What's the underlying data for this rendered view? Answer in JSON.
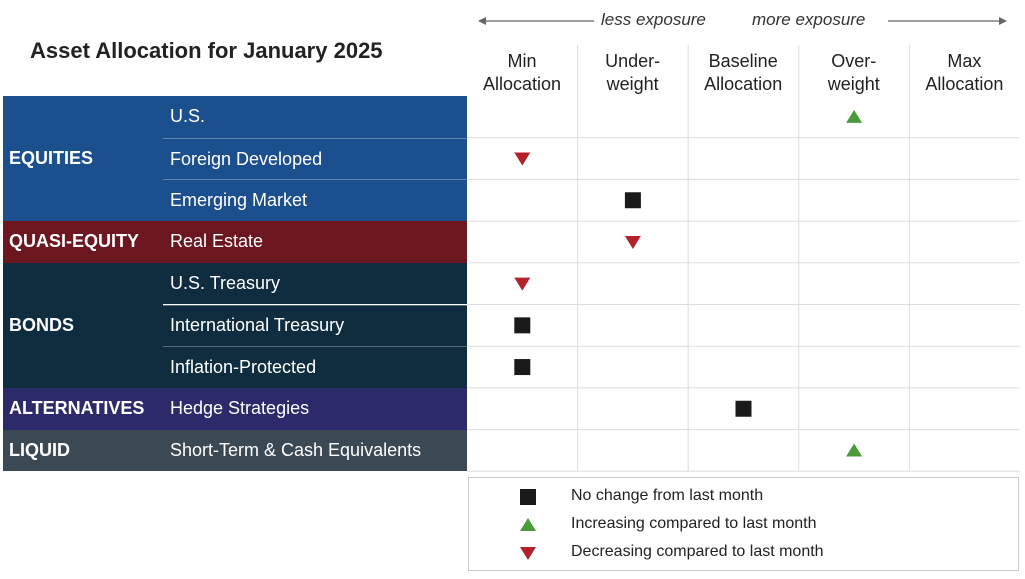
{
  "title": "Asset Allocation for January 2025",
  "exposure": {
    "less": "less exposure",
    "more": "more exposure"
  },
  "columns": [
    [
      "Min",
      "Allocation"
    ],
    [
      "Under-",
      "weight"
    ],
    [
      "Baseline",
      "Allocation"
    ],
    [
      "Over-",
      "weight"
    ],
    [
      "Max",
      "Allocation"
    ]
  ],
  "groups": [
    {
      "name": "EQUITIES",
      "color": "#1b4f8d",
      "rows": [
        {
          "label": "U.S.",
          "position": 3,
          "signal": "increase"
        },
        {
          "label": "Foreign Developed",
          "position": 0,
          "signal": "decrease"
        },
        {
          "label": "Emerging Market",
          "position": 1,
          "signal": "no-change"
        }
      ]
    },
    {
      "name": "QUASI-EQUITY",
      "color": "#6c1620",
      "rows": [
        {
          "label": "Real Estate",
          "position": 1,
          "signal": "decrease"
        }
      ]
    },
    {
      "name": "BONDS",
      "color": "#0f2d3f",
      "rows": [
        {
          "label": "U.S. Treasury",
          "position": 0,
          "signal": "decrease"
        },
        {
          "label": "International Treasury",
          "position": 0,
          "signal": "no-change"
        },
        {
          "label": "Inflation-Protected",
          "position": 0,
          "signal": "no-change"
        }
      ]
    },
    {
      "name": "ALTERNATIVES",
      "color": "#2c2a6b",
      "rows": [
        {
          "label": "Hedge Strategies",
          "position": 2,
          "signal": "no-change"
        }
      ]
    },
    {
      "name": "LIQUID",
      "color": "#3a4954",
      "rows": [
        {
          "label": "Short-Term & Cash Equivalents",
          "position": 3,
          "signal": "increase"
        }
      ]
    }
  ],
  "legend": [
    {
      "signal": "no-change",
      "label": "No change from last month"
    },
    {
      "signal": "increase",
      "label": "Increasing compared to last month"
    },
    {
      "signal": "decrease",
      "label": "Decreasing compared to last month"
    }
  ]
}
